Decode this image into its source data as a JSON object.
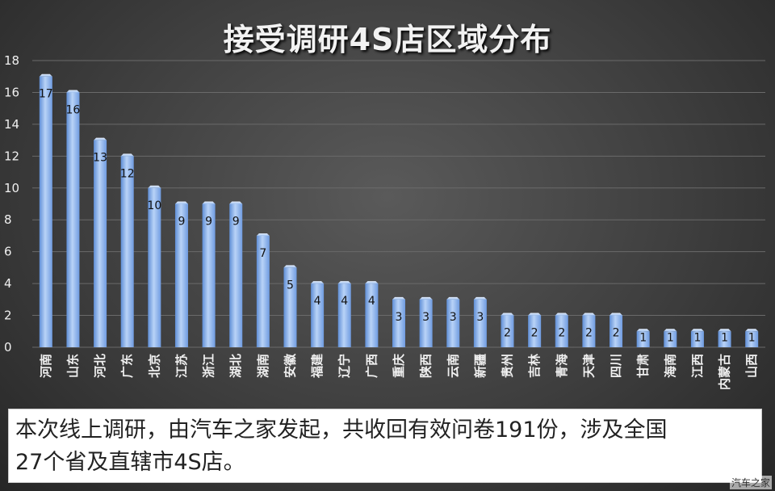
{
  "chart_data": {
    "type": "bar",
    "title": "接受调研4S店区域分布",
    "categories": [
      "河南",
      "山东",
      "河北",
      "广东",
      "北京",
      "江苏",
      "浙江",
      "湖北",
      "湖南",
      "安徽",
      "福建",
      "辽宁",
      "广西",
      "重庆",
      "陕西",
      "云南",
      "新疆",
      "贵州",
      "吉林",
      "青海",
      "天津",
      "四川",
      "甘肃",
      "海南",
      "江西",
      "内蒙古",
      "山西"
    ],
    "values": [
      17,
      16,
      13,
      12,
      10,
      9,
      9,
      9,
      7,
      5,
      4,
      4,
      4,
      3,
      3,
      3,
      3,
      2,
      2,
      2,
      2,
      2,
      1,
      1,
      1,
      1,
      1
    ],
    "ylim": [
      0,
      18
    ],
    "yticks": [
      0,
      2,
      4,
      6,
      8,
      10,
      12,
      14,
      16,
      18
    ],
    "grid": true,
    "legend": "none",
    "bar_color": "#8fb6ec"
  },
  "caption": {
    "line1": "本次线上调研，由汽车之家发起，共收回有效问卷191份，涉及全国",
    "line2": "27个省及直辖市4S店。"
  },
  "watermark": "汽车之家"
}
